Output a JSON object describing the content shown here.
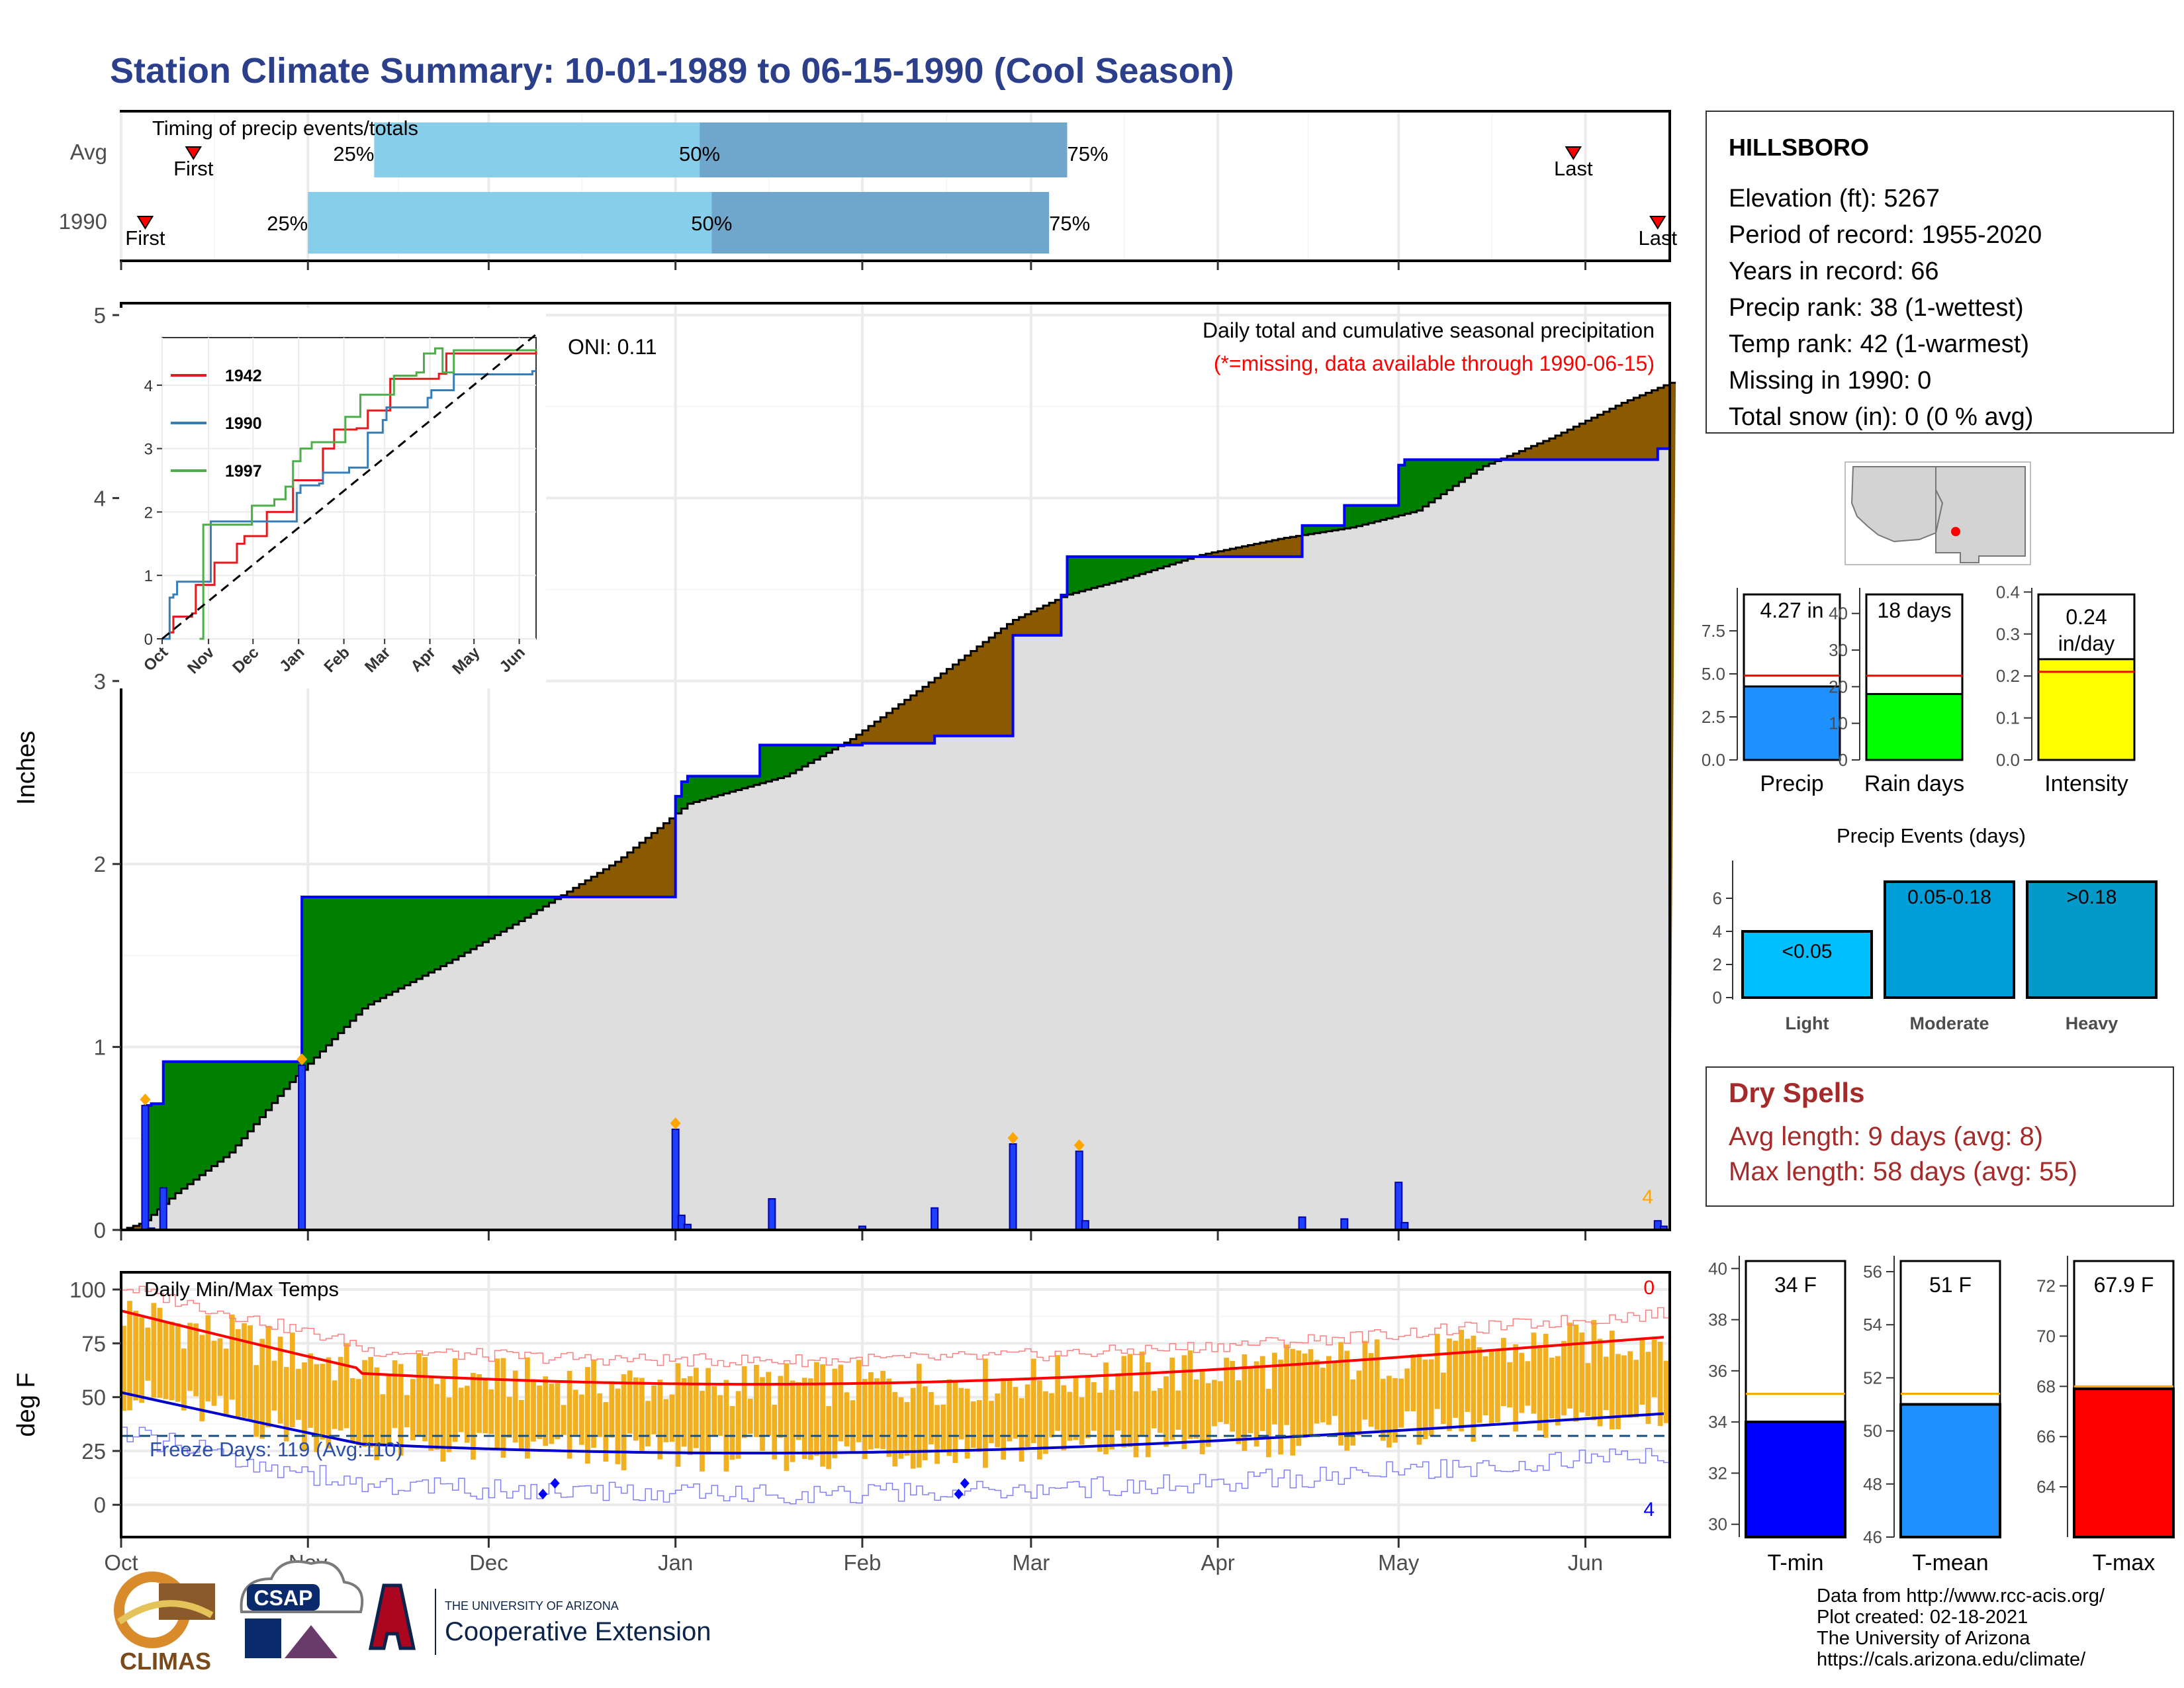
{
  "title": "Station Climate Summary: 10-01-1989 to 06-15-1990 (Cool Season)",
  "colors": {
    "title": "#2b3f8a",
    "cum_area": "#dedede",
    "ahead": "#008000",
    "behind": "#8b5a00",
    "bar_blue": "#1f3fff",
    "light_blue": "#87ceeb",
    "steel_blue": "#6fa6cc",
    "dry": "#a52a2a",
    "orange": "#ffa500",
    "temp_bar": "#f0b020"
  },
  "timing": {
    "label": "Timing of precip events/totals",
    "rows": [
      {
        "name": "Avg",
        "first_label": "First",
        "last_label": "Last",
        "p25": "25%",
        "p50": "50%",
        "p75": "75%",
        "first_date": "1989-10-13",
        "p25_date": "1989-11-12",
        "p50_date": "1990-01-05",
        "p75_date": "1990-03-07",
        "last_date": "1990-05-30"
      },
      {
        "name": "1990",
        "first_label": "First",
        "last_label": "Last",
        "p25": "25%",
        "p50": "50%",
        "p75": "75%",
        "first_date": "1989-10-05",
        "p25_date": "1989-11-00",
        "p50_date": "1990-01-07",
        "p75_date": "1990-03-04",
        "last_date": "1990-06-13"
      }
    ]
  },
  "precip_panel": {
    "ylabel": "Inches",
    "y_ticks": [
      "0",
      "1",
      "2",
      "3",
      "4",
      "5"
    ],
    "ylim": [
      0,
      5
    ],
    "subtitle": "Daily total and cumulative seasonal precipitation",
    "missing_note": "(*=missing, data available through 1990-06-15)",
    "oni": "ONI: 0.11",
    "corner_count": "4"
  },
  "inset": {
    "y_ticks": [
      "0",
      "1",
      "2",
      "3",
      "4"
    ],
    "x_ticks": [
      "Oct",
      "Nov",
      "Dec",
      "Jan",
      "Feb",
      "Mar",
      "Apr",
      "May",
      "Jun"
    ],
    "legend": [
      {
        "name": "1942",
        "color": "#e41a1c"
      },
      {
        "name": "1990",
        "color": "#377eb8"
      },
      {
        "name": "1997",
        "color": "#4daf4a"
      }
    ]
  },
  "temp_panel": {
    "ylabel": "deg F",
    "label": "Daily Min/Max Temps",
    "freeze": "Freeze Days: 119 (Avg:110)",
    "y_ticks": [
      "0",
      "25",
      "50",
      "75",
      "100"
    ],
    "ylim": [
      -15,
      108
    ],
    "freeze_line": 32,
    "top_count": "0",
    "bottom_count": "4"
  },
  "x_months": [
    "Oct",
    "Nov",
    "Dec",
    "Jan",
    "Feb",
    "Mar",
    "Apr",
    "May",
    "Jun"
  ],
  "station": {
    "name": "HILLSBORO",
    "lines": [
      "Elevation (ft): 5267",
      "Period of record: 1955-2020",
      "Years in record: 66",
      "Precip rank: 38 (1-wettest)",
      "Temp rank: 42 (1-warmest)",
      "Missing in 1990: 0",
      "Total snow (in): 0 (0 % avg)"
    ]
  },
  "mini_bars": [
    {
      "name": "Precip",
      "label": "4.27 in",
      "value": 4.27,
      "avg": 4.9,
      "ymax": 10,
      "ticks": [
        "0.0",
        "2.5",
        "5.0",
        "7.5"
      ],
      "tick_vals": [
        0,
        2.5,
        5,
        7.5
      ],
      "color": "#1e90ff"
    },
    {
      "name": "Rain days",
      "label": "18 days",
      "value": 18,
      "avg": 23,
      "ymax": 47,
      "ticks": [
        "0",
        "10",
        "20",
        "30",
        "40"
      ],
      "tick_vals": [
        0,
        10,
        20,
        30,
        40
      ],
      "color": "#00ff00"
    },
    {
      "name": "Intensity",
      "label": "0.24 in/day",
      "label_line1": "0.24",
      "label_line2": "in/day",
      "value": 0.24,
      "avg": 0.21,
      "ymax": 0.41,
      "ticks": [
        "0.0",
        "0.1",
        "0.2",
        "0.3",
        "0.4"
      ],
      "tick_vals": [
        0,
        0.1,
        0.2,
        0.3,
        0.4
      ],
      "color": "#ffff00"
    }
  ],
  "events": {
    "title": "Precip Events (days)",
    "ticks": [
      "0",
      "2",
      "4",
      "6"
    ],
    "bars": [
      {
        "name": "Light",
        "label": "<0.05",
        "value": 4,
        "color": "#00bfff"
      },
      {
        "name": "Moderate",
        "label": "0.05-0.18",
        "value": 7,
        "color": "#009ed8"
      },
      {
        "name": "Heavy",
        "label": ">0.18",
        "value": 7,
        "color": "#0399c8"
      }
    ]
  },
  "dry_spells": {
    "title": "Dry Spells",
    "avg": "Avg length: 9 days (avg: 8)",
    "max": "Max length: 58 days (avg: 55)"
  },
  "temp_bars": [
    {
      "name": "T-min",
      "label": "34 F",
      "value": 34,
      "avg": 35.1,
      "ymin": 29.5,
      "ymax": 40.5,
      "ticks": [
        "30",
        "32",
        "34",
        "36",
        "38",
        "40"
      ],
      "tick_vals": [
        30,
        32,
        34,
        36,
        38,
        40
      ],
      "color": "#0000ff"
    },
    {
      "name": "T-mean",
      "label": "51 F",
      "value": 51,
      "avg": 51.4,
      "ymin": 46,
      "ymax": 56.6,
      "ticks": [
        "46",
        "48",
        "50",
        "52",
        "54",
        "56"
      ],
      "tick_vals": [
        46,
        48,
        50,
        52,
        54,
        56
      ],
      "color": "#1e90ff"
    },
    {
      "name": "T-max",
      "label": "67.9 F",
      "value": 67.9,
      "avg": 68.0,
      "ymin": 62,
      "ymax": 73.2,
      "ticks": [
        "64",
        "66",
        "68",
        "70",
        "72"
      ],
      "tick_vals": [
        64,
        66,
        68,
        70,
        72
      ],
      "color": "#ff0000"
    }
  ],
  "credits": [
    "Data from http://www.rcc-acis.org/",
    "Plot created: 02-18-2021",
    "The University of Arizona",
    "https://cals.arizona.edu/climate/"
  ],
  "logos": {
    "climas": "CLIMAS",
    "csap": "CSAP",
    "ua_small": "THE UNIVERSITY OF ARIZONA",
    "ua_big": "Cooperative Extension"
  },
  "chart_data": {
    "type": "area",
    "title": "Station Climate Summary: 10-01-1989 to 06-15-1990 (Cool Season)",
    "ylabel": "Inches",
    "ylim": [
      0,
      5
    ],
    "series": [
      {
        "name": "1990",
        "x": [
          "1989-10-01",
          "1989-10-05",
          "1989-10-06",
          "1989-10-08",
          "1989-10-31",
          "1990-01-01",
          "1990-01-02",
          "1990-01-03",
          "1990-01-15",
          "1990-02-01",
          "1990-02-13",
          "1990-02-26",
          "1990-03-06",
          "1990-03-07",
          "1990-04-15",
          "1990-04-22",
          "1990-05-01",
          "1990-05-02",
          "1990-06-13",
          "1990-06-15"
        ],
        "values": [
          0.0,
          0.68,
          0.69,
          0.92,
          1.82,
          2.37,
          2.45,
          2.48,
          2.65,
          2.66,
          2.7,
          3.25,
          3.47,
          3.68,
          3.85,
          3.96,
          4.18,
          4.21,
          4.27,
          4.27
        ]
      }
    ],
    "daily": {
      "dates": [
        "1989-10-05",
        "1989-10-06",
        "1989-10-08",
        "1989-10-31",
        "1990-01-01",
        "1990-01-02",
        "1990-01-03",
        "1990-01-17",
        "1990-02-01",
        "1990-02-13",
        "1990-02-26",
        "1990-03-09",
        "1990-03-10",
        "1990-04-15",
        "1990-04-22",
        "1990-05-01",
        "1990-05-02",
        "1990-06-13",
        "1990-06-14"
      ],
      "values": [
        0.68,
        0.01,
        0.23,
        0.9,
        0.55,
        0.08,
        0.03,
        0.17,
        0.02,
        0.12,
        0.47,
        0.43,
        0.05,
        0.07,
        0.06,
        0.26,
        0.04,
        0.05,
        0.02
      ]
    }
  }
}
